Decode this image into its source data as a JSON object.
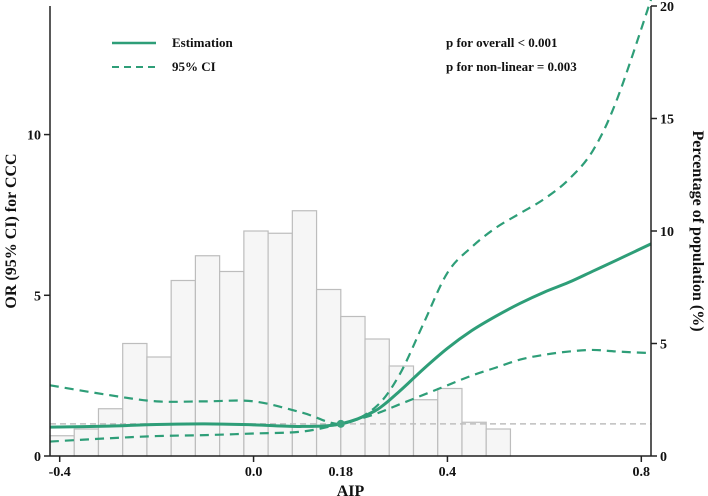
{
  "chart_data": {
    "type": "line",
    "xlabel": "AIP",
    "ylabel": "OR (95% CI) for CCC",
    "y2label": "Percentage of population (%)",
    "xlim": [
      -0.42,
      0.82
    ],
    "ylim": [
      0,
      14
    ],
    "y2lim": [
      0,
      20
    ],
    "x_ticks": [
      -0.4,
      0.0,
      0.4,
      0.8
    ],
    "x_tick_labels": [
      "-0.4",
      "0.0",
      "0.4",
      "0.8"
    ],
    "y_ticks": [
      0,
      5,
      10
    ],
    "y_tick_labels": [
      "0",
      "5",
      "10"
    ],
    "y2_ticks": [
      0,
      5,
      10,
      15,
      20
    ],
    "y2_tick_labels": [
      "0",
      "5",
      "10",
      "15",
      "20"
    ],
    "highlight_x": 0.18,
    "highlight_label": "0.18",
    "reference_line_y": 1,
    "grid": false,
    "legend_position": "top-left",
    "colors": {
      "line": "#2e9e78",
      "highlight": "#3aa37f",
      "bar_fill": "#f6f6f6",
      "bar_stroke": "#bdbdbd",
      "reference": "#bfbfbf"
    },
    "legend": [
      {
        "label": "Estimation",
        "style": "solid"
      },
      {
        "label": "95% CI",
        "style": "dashed"
      }
    ],
    "annotations": [
      "p for overall < 0.001",
      "p for non-linear = 0.003"
    ],
    "histogram": {
      "bin_edges": [
        -0.42,
        -0.37,
        -0.32,
        -0.27,
        -0.22,
        -0.17,
        -0.12,
        -0.07,
        -0.02,
        0.03,
        0.08,
        0.13,
        0.18,
        0.23,
        0.28,
        0.33,
        0.38,
        0.43,
        0.48,
        0.53,
        0.58,
        0.63,
        0.68,
        0.73,
        0.78,
        0.82
      ],
      "percent": [
        0.9,
        1.2,
        2.1,
        5.0,
        4.4,
        7.8,
        8.9,
        8.2,
        10.0,
        9.9,
        10.9,
        7.4,
        6.2,
        5.2,
        4.0,
        2.5,
        3.0,
        1.5,
        1.2,
        0,
        0,
        0,
        0,
        0,
        0
      ]
    },
    "series": [
      {
        "name": "Estimation",
        "style": "solid",
        "x": [
          -0.42,
          -0.3,
          -0.2,
          -0.1,
          0.0,
          0.1,
          0.18,
          0.25,
          0.3,
          0.35,
          0.4,
          0.45,
          0.5,
          0.55,
          0.6,
          0.65,
          0.7,
          0.75,
          0.82
        ],
        "y": [
          0.9,
          0.93,
          0.98,
          1.0,
          0.97,
          0.92,
          1.0,
          1.4,
          2.0,
          2.7,
          3.35,
          3.9,
          4.35,
          4.75,
          5.1,
          5.4,
          5.75,
          6.1,
          6.6
        ]
      },
      {
        "name": "95% CI",
        "style": "dashed",
        "x": [
          -0.42,
          -0.3,
          -0.2,
          -0.1,
          0.0,
          0.1,
          0.18,
          0.25,
          0.3,
          0.35,
          0.4,
          0.45,
          0.5,
          0.55,
          0.6,
          0.65,
          0.7,
          0.75,
          0.82
        ],
        "y": [
          2.2,
          1.9,
          1.7,
          1.7,
          1.7,
          1.35,
          1.0,
          1.5,
          2.5,
          4.1,
          5.7,
          6.5,
          7.1,
          7.55,
          8.0,
          8.6,
          9.5,
          11.1,
          14.2
        ]
      },
      {
        "name": "95% CI",
        "style": "dashed",
        "x": [
          -0.42,
          -0.3,
          -0.2,
          -0.1,
          0.0,
          0.1,
          0.18,
          0.25,
          0.3,
          0.35,
          0.4,
          0.45,
          0.5,
          0.55,
          0.6,
          0.65,
          0.7,
          0.75,
          0.82
        ],
        "y": [
          0.45,
          0.55,
          0.62,
          0.65,
          0.7,
          0.76,
          1.0,
          1.3,
          1.6,
          1.9,
          2.2,
          2.5,
          2.75,
          3.0,
          3.15,
          3.25,
          3.3,
          3.25,
          3.2
        ]
      }
    ]
  }
}
